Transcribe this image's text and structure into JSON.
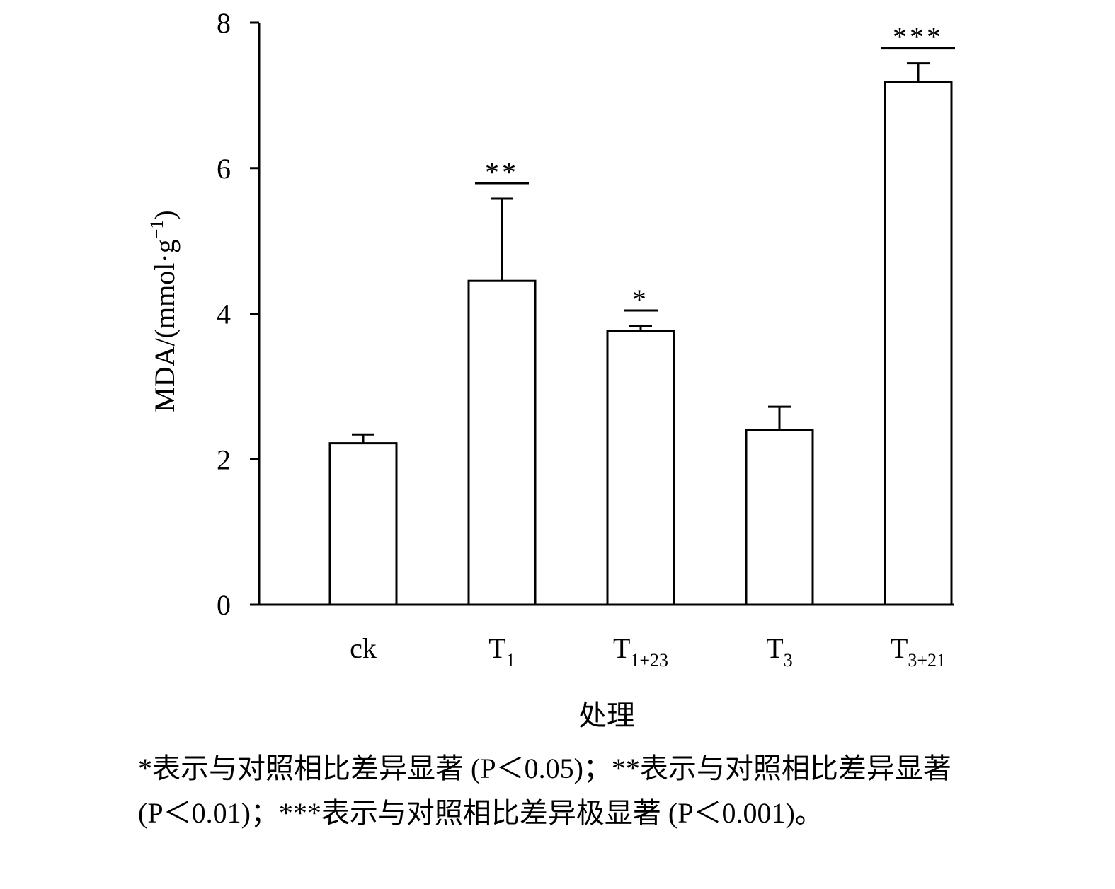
{
  "chart_data": {
    "type": "bar",
    "categories": [
      {
        "main": "ck",
        "sub": ""
      },
      {
        "main": "T",
        "sub": "1"
      },
      {
        "main": "T",
        "sub": "1+23"
      },
      {
        "main": "T",
        "sub": "3"
      },
      {
        "main": "T",
        "sub": "3+21"
      }
    ],
    "values": [
      2.22,
      4.45,
      3.76,
      2.4,
      7.18
    ],
    "errors": [
      0.12,
      1.13,
      0.07,
      0.32,
      0.26
    ],
    "significance": [
      "",
      "**",
      "*",
      "",
      "***"
    ],
    "ylim": [
      0,
      8
    ],
    "yticks": [
      0,
      2,
      4,
      6,
      8
    ],
    "xlabel": "处理",
    "ylabel": {
      "main": "MDA/(mmol·g",
      "sup": "−1",
      "close": ")"
    }
  },
  "caption": "*表示与对照相比差异显著 (P＜0.05)；**表示与对照相比差异显著 (P＜0.01)；***表示与对照相比差异极显著 (P＜0.001)。"
}
